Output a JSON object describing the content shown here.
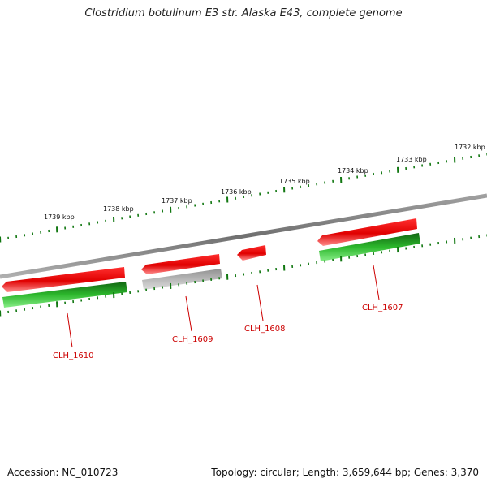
{
  "title": "Clostridium botulinum E3 str. Alaska E43, complete genome",
  "footer": {
    "accession": "Accession: NC_010723",
    "summary": "Topology: circular; Length: 3,659,644 bp; Genes: 3,370"
  },
  "ticks": [
    {
      "label": "1739 kbp"
    },
    {
      "label": "1738 kbp"
    },
    {
      "label": "1737 kbp"
    },
    {
      "label": "1736 kbp"
    },
    {
      "label": "1735 kbp"
    },
    {
      "label": "1734 kbp"
    },
    {
      "label": "1733 kbp"
    },
    {
      "label": "1732 kbp"
    }
  ],
  "genes": [
    {
      "name": "CLH_1610"
    },
    {
      "name": "CLH_1609"
    },
    {
      "name": "CLH_1608"
    },
    {
      "name": "CLH_1607"
    }
  ],
  "colors": {
    "backbone": "#808080",
    "gene_red": "#ee1111",
    "gene_grey": "#a8a8a8",
    "cds_green": "#22aa22",
    "tick_green": "#117711",
    "label_red": "#cc0000"
  }
}
